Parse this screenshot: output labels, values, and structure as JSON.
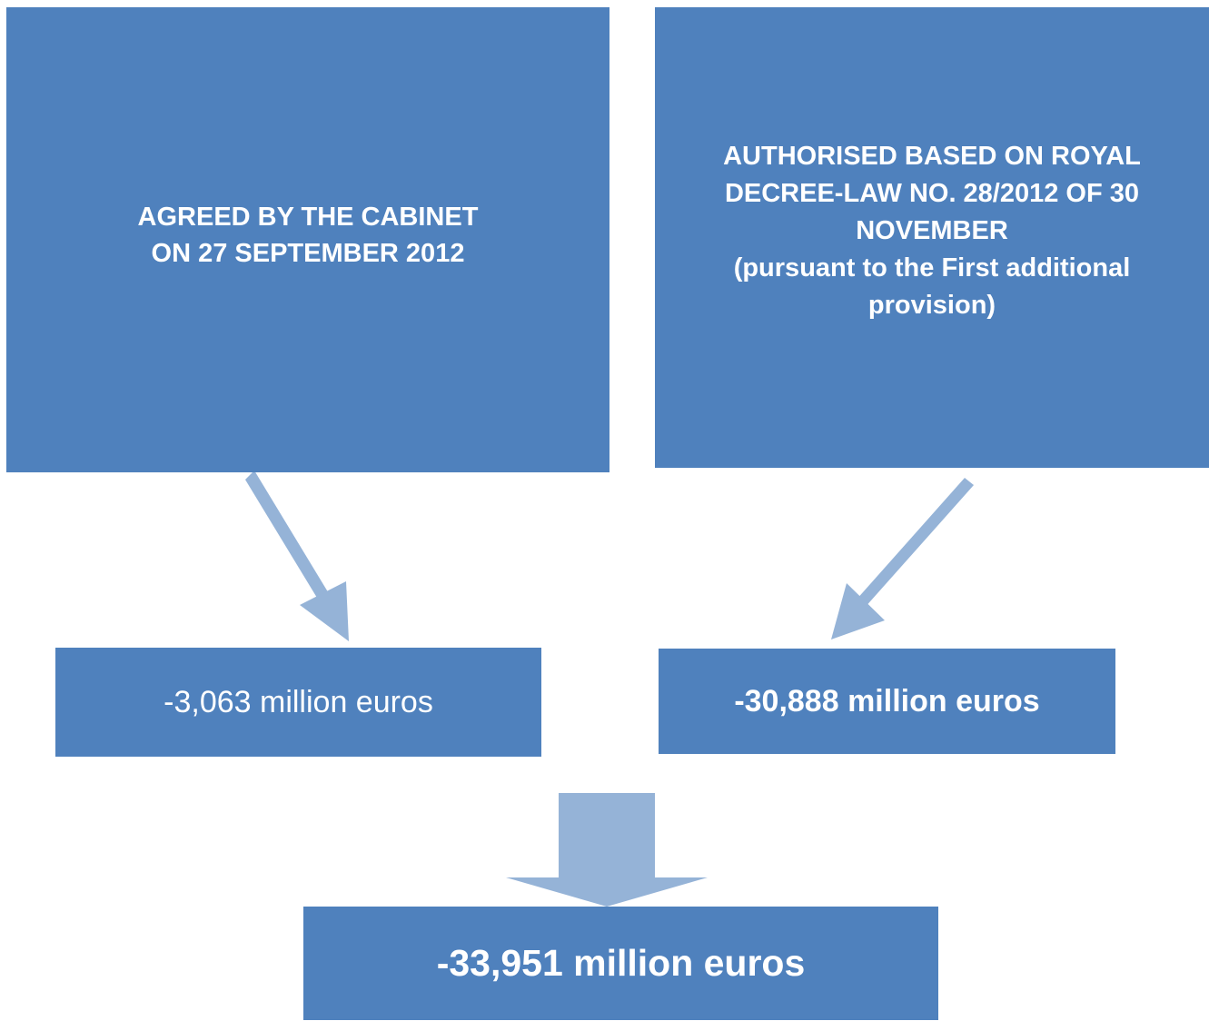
{
  "boxes": {
    "agreed": {
      "text": "AGREED BY THE CABINET\nON 27 SEPTEMBER 2012"
    },
    "authorised": {
      "text": "AUTHORISED BASED ON ROYAL\nDECREE-LAW NO. 28/2012 OF 30\nNOVEMBER\n(pursuant to the First additional\nprovision)"
    },
    "left_amount": {
      "text": "-3,063 million euros"
    },
    "right_amount": {
      "text": "-30,888 million euros"
    },
    "total_amount": {
      "text": "-33,951 million euros"
    }
  },
  "colors": {
    "box_fill": "#4f81bd",
    "arrow_fill": "#95b3d7",
    "text": "#ffffff"
  }
}
